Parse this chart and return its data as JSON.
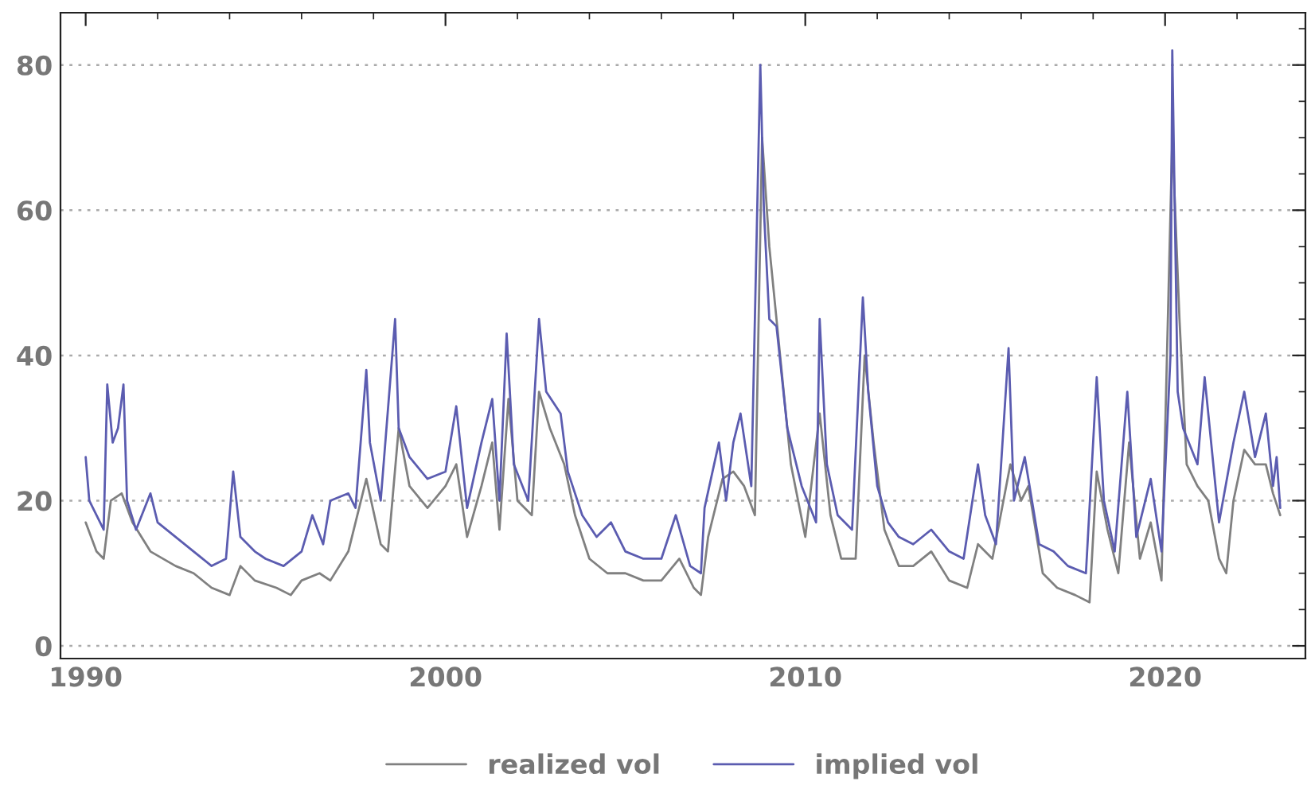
{
  "chart_data": {
    "type": "line",
    "xlim": [
      1989.3,
      2023.9
    ],
    "ylim": [
      -1.75,
      87.2
    ],
    "xticks": [
      1990,
      {
        "value": 1992,
        "label": null
      },
      {
        "value": 1994,
        "label": null
      },
      {
        "value": 1996,
        "label": null
      },
      {
        "value": 1998,
        "label": null
      },
      2000,
      {
        "value": 2002,
        "label": null
      },
      {
        "value": 2004,
        "label": null
      },
      {
        "value": 2006,
        "label": null
      },
      {
        "value": 2008,
        "label": null
      },
      2010,
      {
        "value": 2012,
        "label": null
      },
      {
        "value": 2014,
        "label": null
      },
      {
        "value": 2016,
        "label": null
      },
      {
        "value": 2018,
        "label": null
      },
      2020,
      {
        "value": 2022,
        "label": null
      }
    ],
    "yticks": [
      0,
      {
        "value": 5,
        "label": null
      },
      {
        "value": 10,
        "label": null
      },
      {
        "value": 15,
        "label": null
      },
      20,
      {
        "value": 25,
        "label": null
      },
      {
        "value": 30,
        "label": null
      },
      {
        "value": 35,
        "label": null
      },
      40,
      {
        "value": 45,
        "label": null
      },
      {
        "value": 50,
        "label": null
      },
      {
        "value": 55,
        "label": null
      },
      60,
      {
        "value": 65,
        "label": null
      },
      {
        "value": 70,
        "label": null
      },
      {
        "value": 75,
        "label": null
      },
      80,
      {
        "value": 85,
        "label": null
      }
    ],
    "grid": "y",
    "legend": "bottom",
    "line_style": "solid",
    "marker": "none",
    "series": [
      {
        "name": "realized vol",
        "color": "#808080",
        "x": [
          1990.0,
          1990.3,
          1990.5,
          1990.7,
          1991.0,
          1991.3,
          1991.8,
          1992.5,
          1993.0,
          1993.5,
          1994.0,
          1994.3,
          1994.7,
          1995.3,
          1995.7,
          1996.0,
          1996.5,
          1996.8,
          1997.3,
          1997.8,
          1998.2,
          1998.4,
          1998.7,
          1999.0,
          1999.5,
          2000.0,
          2000.3,
          2000.6,
          2001.0,
          2001.3,
          2001.5,
          2001.75,
          2002.0,
          2002.4,
          2002.6,
          2002.9,
          2003.3,
          2003.6,
          2004.0,
          2004.5,
          2005.0,
          2005.5,
          2006.0,
          2006.5,
          2006.9,
          2007.1,
          2007.3,
          2007.7,
          2008.0,
          2008.3,
          2008.6,
          2008.8,
          2009.0,
          2009.3,
          2009.6,
          2010.0,
          2010.4,
          2010.7,
          2011.0,
          2011.4,
          2011.65,
          2011.9,
          2012.2,
          2012.6,
          2013.0,
          2013.5,
          2014.0,
          2014.5,
          2014.8,
          2015.2,
          2015.7,
          2016.0,
          2016.2,
          2016.6,
          2017.0,
          2017.5,
          2017.9,
          2018.1,
          2018.4,
          2018.7,
          2019.0,
          2019.3,
          2019.6,
          2019.9,
          2020.2,
          2020.4,
          2020.6,
          2020.9,
          2021.2,
          2021.5,
          2021.7,
          2021.9,
          2022.2,
          2022.5,
          2022.8,
          2023.0,
          2023.2
        ],
        "values": [
          17,
          13,
          12,
          20,
          21,
          17,
          13,
          11,
          10,
          8,
          7,
          11,
          9,
          8,
          7,
          9,
          10,
          9,
          13,
          23,
          14,
          13,
          30,
          22,
          19,
          22,
          25,
          15,
          22,
          28,
          16,
          34,
          20,
          18,
          35,
          30,
          25,
          18,
          12,
          10,
          10,
          9,
          9,
          12,
          8,
          7,
          15,
          23,
          24,
          22,
          18,
          70,
          55,
          40,
          25,
          15,
          32,
          18,
          12,
          12,
          40,
          28,
          16,
          11,
          11,
          13,
          9,
          8,
          14,
          12,
          25,
          20,
          22,
          10,
          8,
          7,
          6,
          24,
          16,
          10,
          28,
          12,
          17,
          9,
          70,
          45,
          25,
          22,
          20,
          12,
          10,
          20,
          27,
          25,
          25,
          21,
          18
        ]
      },
      {
        "name": "implied vol",
        "color": "#5b5cb0",
        "x": [
          1990.0,
          1990.1,
          1990.3,
          1990.5,
          1990.6,
          1990.75,
          1990.9,
          1991.05,
          1991.15,
          1991.4,
          1991.8,
          1992.0,
          1992.5,
          1993.0,
          1993.5,
          1993.9,
          1994.1,
          1994.3,
          1994.7,
          1995.0,
          1995.5,
          1996.0,
          1996.3,
          1996.6,
          1996.8,
          1997.3,
          1997.5,
          1997.8,
          1997.9,
          1998.2,
          1998.6,
          1998.7,
          1999.0,
          1999.5,
          2000.0,
          2000.3,
          2000.6,
          2001.0,
          2001.3,
          2001.5,
          2001.7,
          2001.9,
          2002.3,
          2002.6,
          2002.8,
          2003.2,
          2003.4,
          2003.8,
          2004.2,
          2004.6,
          2005.0,
          2005.5,
          2006.0,
          2006.4,
          2006.8,
          2007.1,
          2007.2,
          2007.6,
          2007.8,
          2008.0,
          2008.2,
          2008.5,
          2008.75,
          2008.85,
          2009.0,
          2009.2,
          2009.5,
          2009.9,
          2010.3,
          2010.4,
          2010.6,
          2010.9,
          2011.3,
          2011.6,
          2011.75,
          2012.0,
          2012.3,
          2012.6,
          2013.0,
          2013.5,
          2014.0,
          2014.4,
          2014.8,
          2015.0,
          2015.3,
          2015.65,
          2015.8,
          2016.1,
          2016.5,
          2016.9,
          2017.3,
          2017.8,
          2018.1,
          2018.3,
          2018.6,
          2018.95,
          2019.2,
          2019.6,
          2019.9,
          2020.15,
          2020.2,
          2020.35,
          2020.5,
          2020.9,
          2021.1,
          2021.5,
          2021.9,
          2022.2,
          2022.5,
          2022.8,
          2023.0,
          2023.1,
          2023.2
        ],
        "values": [
          26,
          20,
          18,
          16,
          36,
          28,
          30,
          36,
          20,
          16,
          21,
          17,
          15,
          13,
          11,
          12,
          24,
          15,
          13,
          12,
          11,
          13,
          18,
          14,
          20,
          21,
          19,
          38,
          28,
          20,
          45,
          30,
          26,
          23,
          24,
          33,
          19,
          28,
          34,
          20,
          43,
          25,
          20,
          45,
          35,
          32,
          24,
          18,
          15,
          17,
          13,
          12,
          12,
          18,
          11,
          10,
          19,
          28,
          20,
          28,
          32,
          22,
          80,
          60,
          45,
          44,
          30,
          22,
          17,
          45,
          25,
          18,
          16,
          48,
          35,
          22,
          17,
          15,
          14,
          16,
          13,
          12,
          25,
          18,
          14,
          41,
          20,
          26,
          14,
          13,
          11,
          10,
          37,
          20,
          13,
          35,
          15,
          23,
          13,
          40,
          82,
          35,
          30,
          25,
          37,
          17,
          28,
          35,
          26,
          32,
          22,
          26,
          19
        ]
      }
    ]
  }
}
